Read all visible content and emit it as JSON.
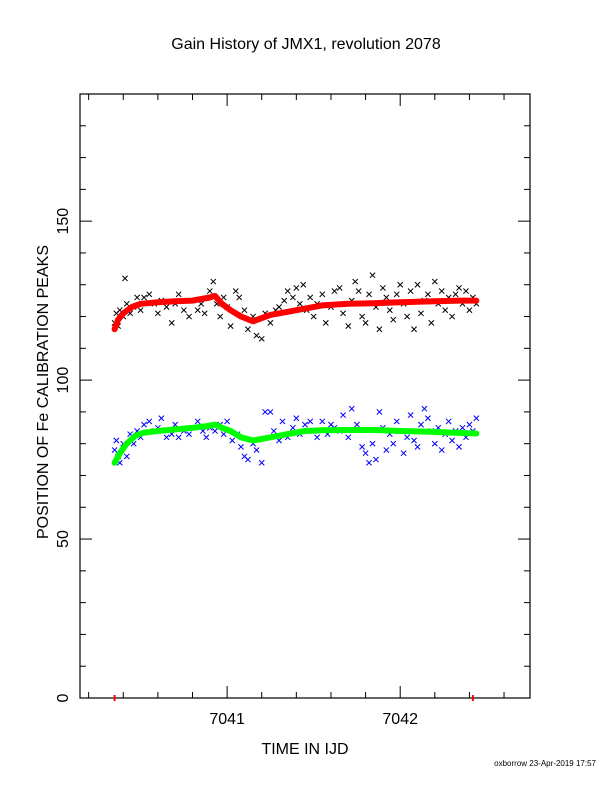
{
  "chart_data": {
    "type": "scatter",
    "title": "Gain History of JMX1, revolution 2078",
    "xlabel": "TIME IN IJD",
    "ylabel": "POSITION OF Fe CALIBRATION PEAKS",
    "xlim": [
      7040.15,
      7042.75
    ],
    "ylim": [
      0,
      190
    ],
    "x_ticks": [
      7041,
      7042
    ],
    "y_ticks": [
      0,
      50,
      100,
      150
    ],
    "markers_at_zero": [
      {
        "x": 7040.35,
        "color": "#ff0000"
      },
      {
        "x": 7042.42,
        "color": "#ff0000"
      }
    ],
    "series": [
      {
        "marker": "x",
        "color": "#000000",
        "points": [
          [
            7040.35,
            118
          ],
          [
            7040.36,
            121
          ],
          [
            7040.37,
            117
          ],
          [
            7040.38,
            122
          ],
          [
            7040.4,
            120
          ],
          [
            7040.41,
            132
          ],
          [
            7040.42,
            124
          ],
          [
            7040.44,
            121
          ],
          [
            7040.46,
            123
          ],
          [
            7040.48,
            126
          ],
          [
            7040.5,
            122
          ],
          [
            7040.52,
            126
          ],
          [
            7040.55,
            127
          ],
          [
            7040.58,
            124
          ],
          [
            7040.6,
            121
          ],
          [
            7040.62,
            125
          ],
          [
            7040.65,
            123
          ],
          [
            7040.68,
            118
          ],
          [
            7040.7,
            124
          ],
          [
            7040.72,
            127
          ],
          [
            7040.75,
            122
          ],
          [
            7040.78,
            120
          ],
          [
            7040.8,
            125
          ],
          [
            7040.83,
            122
          ],
          [
            7040.85,
            124
          ],
          [
            7040.87,
            121
          ],
          [
            7040.9,
            128
          ],
          [
            7040.92,
            131
          ],
          [
            7040.94,
            124
          ],
          [
            7040.96,
            120
          ],
          [
            7040.98,
            126
          ],
          [
            7041.0,
            123
          ],
          [
            7041.02,
            117
          ],
          [
            7041.05,
            128
          ],
          [
            7041.07,
            126
          ],
          [
            7041.1,
            122
          ],
          [
            7041.12,
            116
          ],
          [
            7041.15,
            120
          ],
          [
            7041.17,
            114
          ],
          [
            7041.2,
            113
          ],
          [
            7041.22,
            121
          ],
          [
            7041.25,
            118
          ],
          [
            7041.28,
            122
          ],
          [
            7041.3,
            123
          ],
          [
            7041.33,
            125
          ],
          [
            7041.35,
            128
          ],
          [
            7041.38,
            126
          ],
          [
            7041.4,
            129
          ],
          [
            7041.42,
            124
          ],
          [
            7041.44,
            130
          ],
          [
            7041.46,
            122
          ],
          [
            7041.48,
            126
          ],
          [
            7041.5,
            120
          ],
          [
            7041.52,
            124
          ],
          [
            7041.55,
            127
          ],
          [
            7041.57,
            118
          ],
          [
            7041.6,
            123
          ],
          [
            7041.62,
            128
          ],
          [
            7041.65,
            129
          ],
          [
            7041.67,
            121
          ],
          [
            7041.7,
            117
          ],
          [
            7041.72,
            125
          ],
          [
            7041.74,
            131
          ],
          [
            7041.76,
            128
          ],
          [
            7041.78,
            120
          ],
          [
            7041.8,
            118
          ],
          [
            7041.82,
            127
          ],
          [
            7041.84,
            133
          ],
          [
            7041.86,
            123
          ],
          [
            7041.88,
            116
          ],
          [
            7041.9,
            129
          ],
          [
            7041.92,
            126
          ],
          [
            7041.94,
            122
          ],
          [
            7041.96,
            119
          ],
          [
            7041.98,
            127
          ],
          [
            7042.0,
            130
          ],
          [
            7042.02,
            124
          ],
          [
            7042.04,
            120
          ],
          [
            7042.06,
            128
          ],
          [
            7042.08,
            116
          ],
          [
            7042.1,
            130
          ],
          [
            7042.12,
            121
          ],
          [
            7042.14,
            125
          ],
          [
            7042.16,
            127
          ],
          [
            7042.18,
            118
          ],
          [
            7042.2,
            131
          ],
          [
            7042.22,
            124
          ],
          [
            7042.24,
            128
          ],
          [
            7042.26,
            122
          ],
          [
            7042.28,
            126
          ],
          [
            7042.3,
            120
          ],
          [
            7042.32,
            127
          ],
          [
            7042.34,
            129
          ],
          [
            7042.36,
            124
          ],
          [
            7042.38,
            128
          ],
          [
            7042.4,
            122
          ],
          [
            7042.42,
            126
          ],
          [
            7042.44,
            124
          ]
        ]
      },
      {
        "marker": "line",
        "color": "#ff0000",
        "points": [
          [
            7040.35,
            116
          ],
          [
            7040.37,
            119
          ],
          [
            7040.4,
            121
          ],
          [
            7040.45,
            123
          ],
          [
            7040.5,
            124
          ],
          [
            7040.6,
            124.5
          ],
          [
            7040.7,
            124.8
          ],
          [
            7040.8,
            125
          ],
          [
            7040.9,
            126
          ],
          [
            7040.93,
            126.5
          ],
          [
            7040.97,
            124
          ],
          [
            7041.02,
            122
          ],
          [
            7041.08,
            120
          ],
          [
            7041.15,
            118.5
          ],
          [
            7041.2,
            119.5
          ],
          [
            7041.25,
            120.5
          ],
          [
            7041.35,
            121.5
          ],
          [
            7041.45,
            122.5
          ],
          [
            7041.55,
            123.5
          ],
          [
            7041.7,
            124
          ],
          [
            7041.85,
            124.2
          ],
          [
            7042.0,
            124.5
          ],
          [
            7042.2,
            124.8
          ],
          [
            7042.35,
            125
          ],
          [
            7042.44,
            125
          ]
        ]
      },
      {
        "marker": "x",
        "color": "#0000ff",
        "points": [
          [
            7040.35,
            78
          ],
          [
            7040.36,
            81
          ],
          [
            7040.37,
            76
          ],
          [
            7040.38,
            74
          ],
          [
            7040.4,
            80
          ],
          [
            7040.42,
            76
          ],
          [
            7040.44,
            83
          ],
          [
            7040.46,
            80
          ],
          [
            7040.48,
            84
          ],
          [
            7040.5,
            82
          ],
          [
            7040.52,
            86
          ],
          [
            7040.55,
            87
          ],
          [
            7040.58,
            84
          ],
          [
            7040.6,
            85
          ],
          [
            7040.62,
            88
          ],
          [
            7040.65,
            82
          ],
          [
            7040.68,
            83
          ],
          [
            7040.7,
            86
          ],
          [
            7040.72,
            82
          ],
          [
            7040.75,
            84
          ],
          [
            7040.78,
            83
          ],
          [
            7040.8,
            85
          ],
          [
            7040.83,
            87
          ],
          [
            7040.86,
            84
          ],
          [
            7040.88,
            82
          ],
          [
            7040.9,
            85
          ],
          [
            7040.93,
            84
          ],
          [
            7040.96,
            86
          ],
          [
            7040.98,
            83
          ],
          [
            7041.0,
            87
          ],
          [
            7041.03,
            81
          ],
          [
            7041.06,
            83
          ],
          [
            7041.08,
            79
          ],
          [
            7041.1,
            76
          ],
          [
            7041.12,
            75
          ],
          [
            7041.15,
            80
          ],
          [
            7041.17,
            78
          ],
          [
            7041.2,
            74
          ],
          [
            7041.22,
            90
          ],
          [
            7041.25,
            90
          ],
          [
            7041.27,
            84
          ],
          [
            7041.3,
            81
          ],
          [
            7041.32,
            87
          ],
          [
            7041.35,
            82
          ],
          [
            7041.38,
            85
          ],
          [
            7041.4,
            88
          ],
          [
            7041.42,
            83
          ],
          [
            7041.45,
            86
          ],
          [
            7041.48,
            87
          ],
          [
            7041.5,
            84
          ],
          [
            7041.52,
            82
          ],
          [
            7041.55,
            87
          ],
          [
            7041.58,
            83
          ],
          [
            7041.6,
            86
          ],
          [
            7041.62,
            85
          ],
          [
            7041.65,
            84
          ],
          [
            7041.67,
            89
          ],
          [
            7041.7,
            82
          ],
          [
            7041.72,
            91
          ],
          [
            7041.75,
            86
          ],
          [
            7041.78,
            79
          ],
          [
            7041.8,
            77
          ],
          [
            7041.82,
            74
          ],
          [
            7041.84,
            80
          ],
          [
            7041.86,
            75
          ],
          [
            7041.88,
            90
          ],
          [
            7041.9,
            85
          ],
          [
            7041.92,
            78
          ],
          [
            7041.94,
            83
          ],
          [
            7041.96,
            80
          ],
          [
            7041.98,
            87
          ],
          [
            7042.0,
            84
          ],
          [
            7042.02,
            77
          ],
          [
            7042.04,
            82
          ],
          [
            7042.06,
            89
          ],
          [
            7042.08,
            81
          ],
          [
            7042.1,
            79
          ],
          [
            7042.12,
            86
          ],
          [
            7042.14,
            91
          ],
          [
            7042.16,
            88
          ],
          [
            7042.18,
            84
          ],
          [
            7042.2,
            80
          ],
          [
            7042.22,
            85
          ],
          [
            7042.24,
            78
          ],
          [
            7042.26,
            83
          ],
          [
            7042.28,
            87
          ],
          [
            7042.3,
            81
          ],
          [
            7042.32,
            84
          ],
          [
            7042.34,
            79
          ],
          [
            7042.36,
            85
          ],
          [
            7042.38,
            82
          ],
          [
            7042.4,
            86
          ],
          [
            7042.42,
            84
          ],
          [
            7042.44,
            88
          ]
        ]
      },
      {
        "marker": "line",
        "color": "#00ff00",
        "points": [
          [
            7040.35,
            74
          ],
          [
            7040.38,
            77
          ],
          [
            7040.42,
            80
          ],
          [
            7040.47,
            82.5
          ],
          [
            7040.52,
            83.5
          ],
          [
            7040.6,
            84
          ],
          [
            7040.7,
            84.5
          ],
          [
            7040.8,
            85
          ],
          [
            7040.88,
            85.5
          ],
          [
            7040.93,
            86
          ],
          [
            7040.97,
            85
          ],
          [
            7041.02,
            84
          ],
          [
            7041.08,
            82
          ],
          [
            7041.15,
            81
          ],
          [
            7041.2,
            81.5
          ],
          [
            7041.25,
            82
          ],
          [
            7041.35,
            83
          ],
          [
            7041.45,
            84
          ],
          [
            7041.55,
            84.2
          ],
          [
            7041.7,
            84.3
          ],
          [
            7041.85,
            84.3
          ],
          [
            7042.0,
            84
          ],
          [
            7042.15,
            83.8
          ],
          [
            7042.3,
            83.5
          ],
          [
            7042.44,
            83.2
          ]
        ]
      }
    ]
  },
  "footer": {
    "text": "oxborrow 23-Apr-2019 17:57"
  }
}
